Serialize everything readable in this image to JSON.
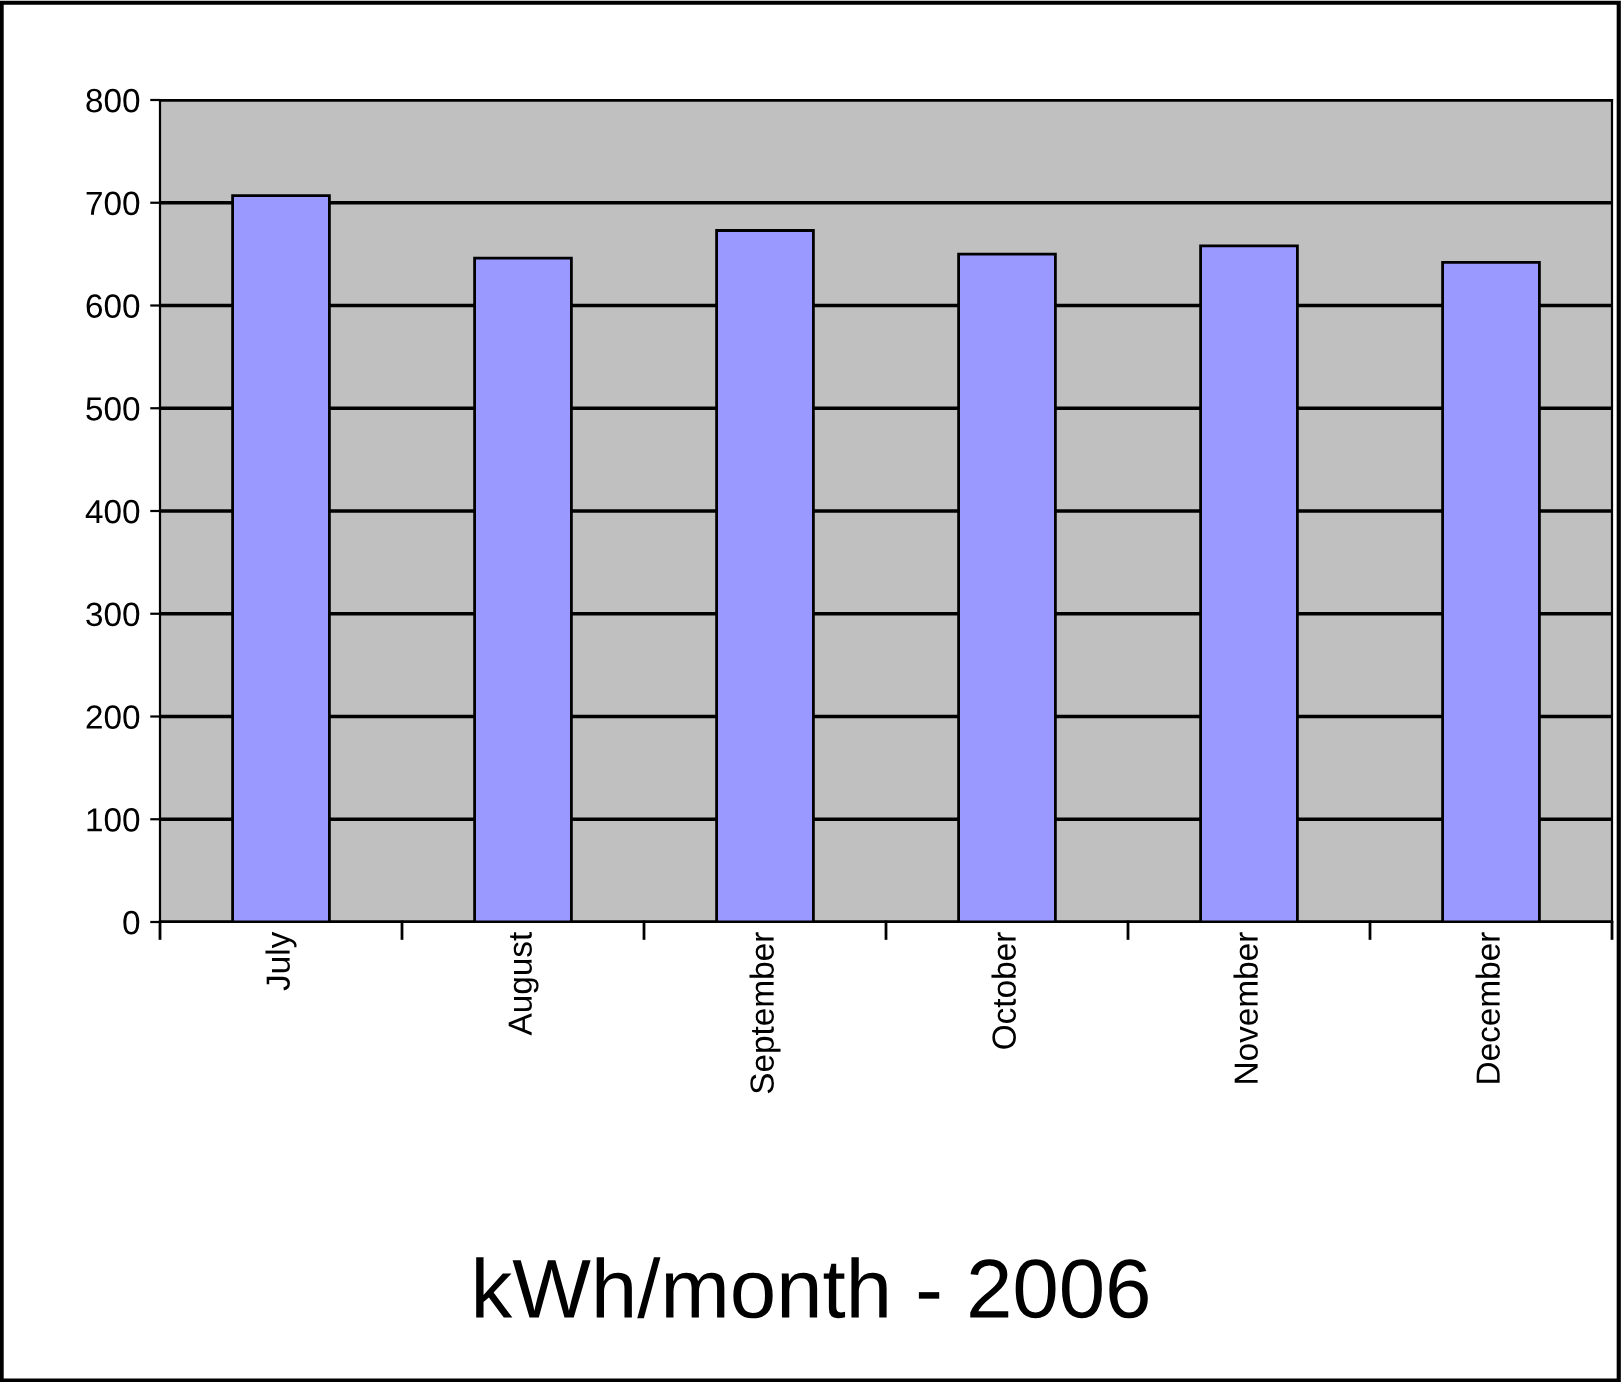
{
  "chart_data": {
    "type": "bar",
    "title": "kWh/month - 2006",
    "categories": [
      "July",
      "August",
      "September",
      "October",
      "November",
      "December"
    ],
    "values": [
      707,
      646,
      673,
      650,
      658,
      642
    ],
    "color": "#9999ff",
    "ylim": [
      0,
      800
    ],
    "yticks": [
      0,
      100,
      200,
      300,
      400,
      500,
      600,
      700,
      800
    ],
    "grid": "y"
  }
}
